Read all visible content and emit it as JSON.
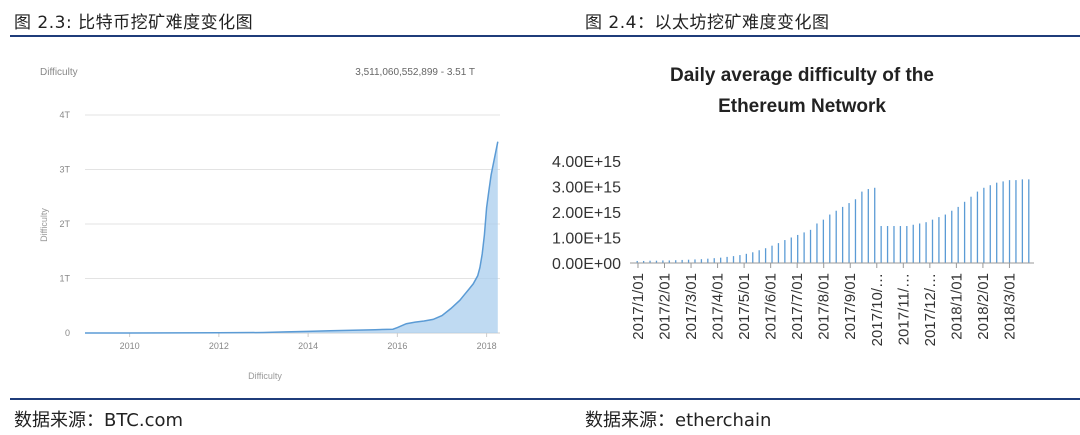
{
  "left_figure": {
    "caption": "图 2.3: 比特币挖矿难度变化图",
    "source": "数据来源：BTC.com"
  },
  "right_figure": {
    "caption": "图 2.4：以太坊挖矿难度变化图",
    "source": "数据来源：etherchain"
  },
  "colors": {
    "rule": "#1f3c7a",
    "btc_fill": "#a9cdee",
    "btc_line": "#5b9bd5",
    "eth_bar": "#5b9bd5"
  },
  "chart_data": [
    {
      "type": "area",
      "title": "Difficulty",
      "readout": "3,511,060,552,899 - 3.51 T",
      "xlabel": "Difficulty",
      "ylabel": "Difficulty",
      "yticks": [
        "0",
        "1T",
        "2T",
        "3T",
        "4T"
      ],
      "xticks": [
        "2010",
        "2012",
        "2014",
        "2016",
        "2018"
      ],
      "xlim": [
        2009.0,
        2018.3
      ],
      "ylim": [
        0,
        4
      ],
      "grid": true,
      "series": [
        {
          "x": [
            2009.0,
            2010.0,
            2011.0,
            2012.0,
            2013.0,
            2013.5,
            2014.0,
            2014.5,
            2015.0,
            2015.5,
            2015.9,
            2016.0,
            2016.2,
            2016.4,
            2016.6,
            2016.8,
            2017.0,
            2017.2,
            2017.4,
            2017.5,
            2017.6,
            2017.7,
            2017.8,
            2017.85,
            2017.9,
            2017.95,
            2018.0,
            2018.05,
            2018.1,
            2018.15,
            2018.2,
            2018.25
          ],
          "y": [
            0,
            0,
            0.001,
            0.003,
            0.01,
            0.02,
            0.03,
            0.04,
            0.05,
            0.06,
            0.07,
            0.1,
            0.17,
            0.2,
            0.22,
            0.25,
            0.32,
            0.45,
            0.6,
            0.7,
            0.8,
            0.9,
            1.05,
            1.2,
            1.45,
            1.8,
            2.3,
            2.6,
            2.9,
            3.1,
            3.3,
            3.51
          ]
        }
      ]
    },
    {
      "type": "bar",
      "title_lines": [
        "Daily average difficulty of the",
        "Ethereum Network"
      ],
      "yticks": [
        "0.00E+00",
        "1.00E+15",
        "2.00E+15",
        "3.00E+15",
        "4.00E+15"
      ],
      "ylim": [
        0,
        4000000000000000.0
      ],
      "xticks": [
        "2017/1/01",
        "2017/2/01",
        "2017/3/01",
        "2017/4/01",
        "2017/5/01",
        "2017/6/01",
        "2017/7/01",
        "2017/8/01",
        "2017/9/01",
        "2017/10/…",
        "2017/11/…",
        "2017/12/…",
        "2018/1/01",
        "2018/2/01",
        "2018/3/01"
      ],
      "values": [
        80000000000000.0,
        80000000000000.0,
        90000000000000.0,
        90000000000000.0,
        100000000000000.0,
        100000000000000.0,
        110000000000000.0,
        120000000000000.0,
        130000000000000.0,
        140000000000000.0,
        150000000000000.0,
        170000000000000.0,
        190000000000000.0,
        210000000000000.0,
        240000000000000.0,
        270000000000000.0,
        310000000000000.0,
        360000000000000.0,
        420000000000000.0,
        500000000000000.0,
        580000000000000.0,
        680000000000000.0,
        780000000000000.0,
        900000000000000.0,
        1000000000000000.0,
        1100000000000000.0,
        1200000000000000.0,
        1300000000000000.0,
        1550000000000000.0,
        1700000000000000.0,
        1900000000000000.0,
        2050000000000000.0,
        2200000000000000.0,
        2350000000000000.0,
        2500000000000000.0,
        2800000000000000.0,
        2900000000000000.0,
        2950000000000000.0,
        1450000000000000.0,
        1450000000000000.0,
        1450000000000000.0,
        1450000000000000.0,
        1450000000000000.0,
        1500000000000000.0,
        1550000000000000.0,
        1600000000000000.0,
        1700000000000000.0,
        1800000000000000.0,
        1900000000000000.0,
        2050000000000000.0,
        2200000000000000.0,
        2400000000000000.0,
        2600000000000000.0,
        2800000000000000.0,
        2950000000000000.0,
        3050000000000000.0,
        3150000000000000.0,
        3200000000000000.0,
        3250000000000000.0,
        3250000000000000.0,
        3280000000000000.0,
        3280000000000000.0
      ]
    }
  ]
}
